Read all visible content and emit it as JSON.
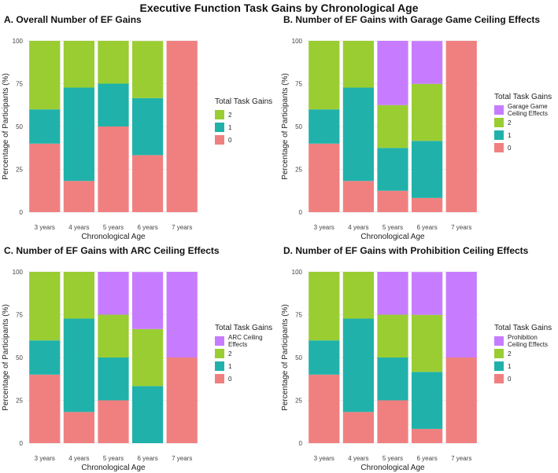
{
  "title": "Executive Function Task Gains by Chronological Age",
  "colors": {
    "ceiling": "#c77cff",
    "two": "#9acd32",
    "one": "#20b2aa",
    "zero": "#f08080",
    "grid": "#ebebeb"
  },
  "chart_data": [
    {
      "type": "bar",
      "stacked": true,
      "title": "A. Overall Number of EF Gains",
      "xlabel": "Chronological Age",
      "ylabel": "Percentage of Participants (%)",
      "ylim": [
        0,
        100
      ],
      "yticks": [
        "0",
        "25",
        "50",
        "75",
        "100"
      ],
      "categories": [
        "3 years",
        "4 years",
        "5 years",
        "6 years",
        "7 years"
      ],
      "legend_title": "Total Task Gains",
      "legend": [
        {
          "key": "two",
          "label": "2"
        },
        {
          "key": "one",
          "label": "1"
        },
        {
          "key": "zero",
          "label": "0"
        }
      ],
      "series": [
        {
          "name": "0",
          "key": "zero",
          "values": [
            40,
            18.2,
            50,
            33.3,
            100
          ]
        },
        {
          "name": "1",
          "key": "one",
          "values": [
            20,
            54.5,
            25,
            33.3,
            0
          ]
        },
        {
          "name": "2",
          "key": "two",
          "values": [
            40,
            27.3,
            25,
            33.3,
            0
          ]
        }
      ]
    },
    {
      "type": "bar",
      "stacked": true,
      "title": "B. Number of EF Gains with Garage Game Ceiling Effects",
      "xlabel": "Chronological Age",
      "ylabel": "Percentage of Participants (%)",
      "ylim": [
        0,
        100
      ],
      "yticks": [
        "0",
        "25",
        "50",
        "75",
        "100"
      ],
      "categories": [
        "3 years",
        "4 years",
        "5 years",
        "6 years",
        "7 years"
      ],
      "legend_title": "Total Task Gains",
      "legend": [
        {
          "key": "ceiling",
          "label": "Garage Game Ceiling Effects",
          "lines": [
            "Garage Game",
            "Ceiling Effects"
          ]
        },
        {
          "key": "two",
          "label": "2"
        },
        {
          "key": "one",
          "label": "1"
        },
        {
          "key": "zero",
          "label": "0"
        }
      ],
      "series": [
        {
          "name": "0",
          "key": "zero",
          "values": [
            40,
            18.2,
            12.5,
            8.3,
            100
          ]
        },
        {
          "name": "1",
          "key": "one",
          "values": [
            20,
            54.5,
            25,
            33.3,
            0
          ]
        },
        {
          "name": "2",
          "key": "two",
          "values": [
            40,
            27.3,
            25,
            33.3,
            0
          ]
        },
        {
          "name": "Garage Game Ceiling Effects",
          "key": "ceiling",
          "values": [
            0,
            0,
            37.5,
            25,
            0
          ]
        }
      ]
    },
    {
      "type": "bar",
      "stacked": true,
      "title": "C. Number of EF Gains with ARC Ceiling Effects",
      "xlabel": "Chronological Age",
      "ylabel": "Percentage of Participants (%)",
      "ylim": [
        0,
        100
      ],
      "yticks": [
        "0",
        "25",
        "50",
        "75",
        "100"
      ],
      "categories": [
        "3 years",
        "4 years",
        "5 years",
        "6 years",
        "7 years"
      ],
      "legend_title": "Total Task Gains",
      "legend": [
        {
          "key": "ceiling",
          "label": "ARC Ceiling Effects",
          "lines": [
            "ARC Ceiling",
            "Effects"
          ]
        },
        {
          "key": "two",
          "label": "2"
        },
        {
          "key": "one",
          "label": "1"
        },
        {
          "key": "zero",
          "label": "0"
        }
      ],
      "series": [
        {
          "name": "0",
          "key": "zero",
          "values": [
            40,
            18.2,
            25,
            0,
            50
          ]
        },
        {
          "name": "1",
          "key": "one",
          "values": [
            20,
            54.5,
            25,
            33.3,
            0
          ]
        },
        {
          "name": "2",
          "key": "two",
          "values": [
            40,
            27.3,
            25,
            33.3,
            0
          ]
        },
        {
          "name": "ARC Ceiling Effects",
          "key": "ceiling",
          "values": [
            0,
            0,
            25,
            33.3,
            50
          ]
        }
      ]
    },
    {
      "type": "bar",
      "stacked": true,
      "title": "D. Number of EF Gains with Prohibition Ceiling Effects",
      "xlabel": "Chronological Age",
      "ylabel": "Percentage of Participants (%)",
      "ylim": [
        0,
        100
      ],
      "yticks": [
        "0",
        "25",
        "50",
        "75",
        "100"
      ],
      "categories": [
        "3 years",
        "4 years",
        "5 years",
        "6 years",
        "7 years"
      ],
      "legend_title": "Total Task Gains",
      "legend": [
        {
          "key": "ceiling",
          "label": "Prohibition Ceiling Effects",
          "lines": [
            "Prohibition",
            "Ceiling Effects"
          ]
        },
        {
          "key": "two",
          "label": "2"
        },
        {
          "key": "one",
          "label": "1"
        },
        {
          "key": "zero",
          "label": "0"
        }
      ],
      "series": [
        {
          "name": "0",
          "key": "zero",
          "values": [
            40,
            18.2,
            25,
            8.3,
            50
          ]
        },
        {
          "name": "1",
          "key": "one",
          "values": [
            20,
            54.5,
            25,
            33.3,
            0
          ]
        },
        {
          "name": "2",
          "key": "two",
          "values": [
            40,
            27.3,
            25,
            33.3,
            0
          ]
        },
        {
          "name": "Prohibition Ceiling Effects",
          "key": "ceiling",
          "values": [
            0,
            0,
            25,
            25,
            50
          ]
        }
      ]
    }
  ]
}
